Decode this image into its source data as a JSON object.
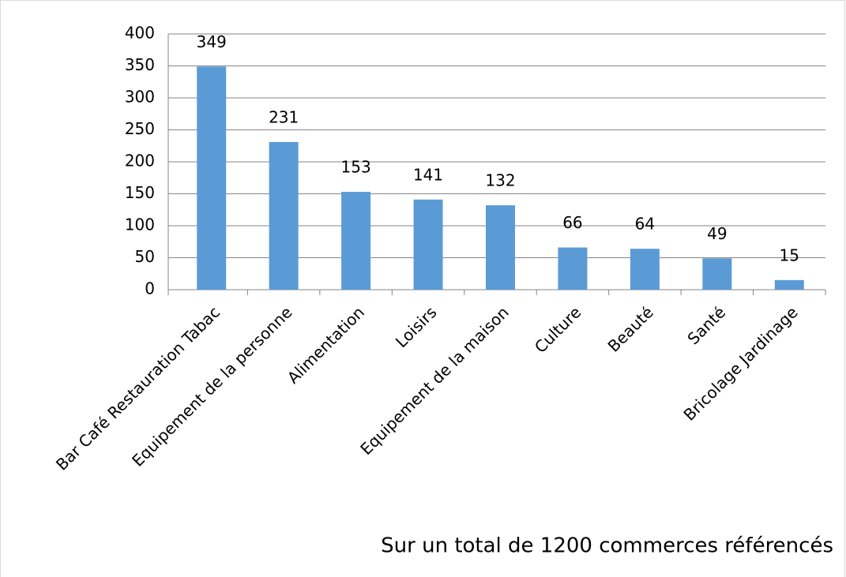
{
  "chart_data": {
    "type": "bar",
    "categories": [
      "Bar Café Restauration Tabac",
      "Equipement de la personne",
      "Alimentation",
      "Loisirs",
      "Equipement de la maison",
      "Culture",
      "Beauté",
      "Santé",
      "Bricolage Jardinage"
    ],
    "values": [
      349,
      231,
      153,
      141,
      132,
      66,
      64,
      49,
      15
    ],
    "color": "#5b9bd5",
    "ylim": [
      0,
      400
    ],
    "yticks": [
      0,
      50,
      100,
      150,
      200,
      250,
      300,
      350,
      400
    ],
    "grid": true,
    "annotation": "Sur un total de 1200 commerces référencés"
  }
}
